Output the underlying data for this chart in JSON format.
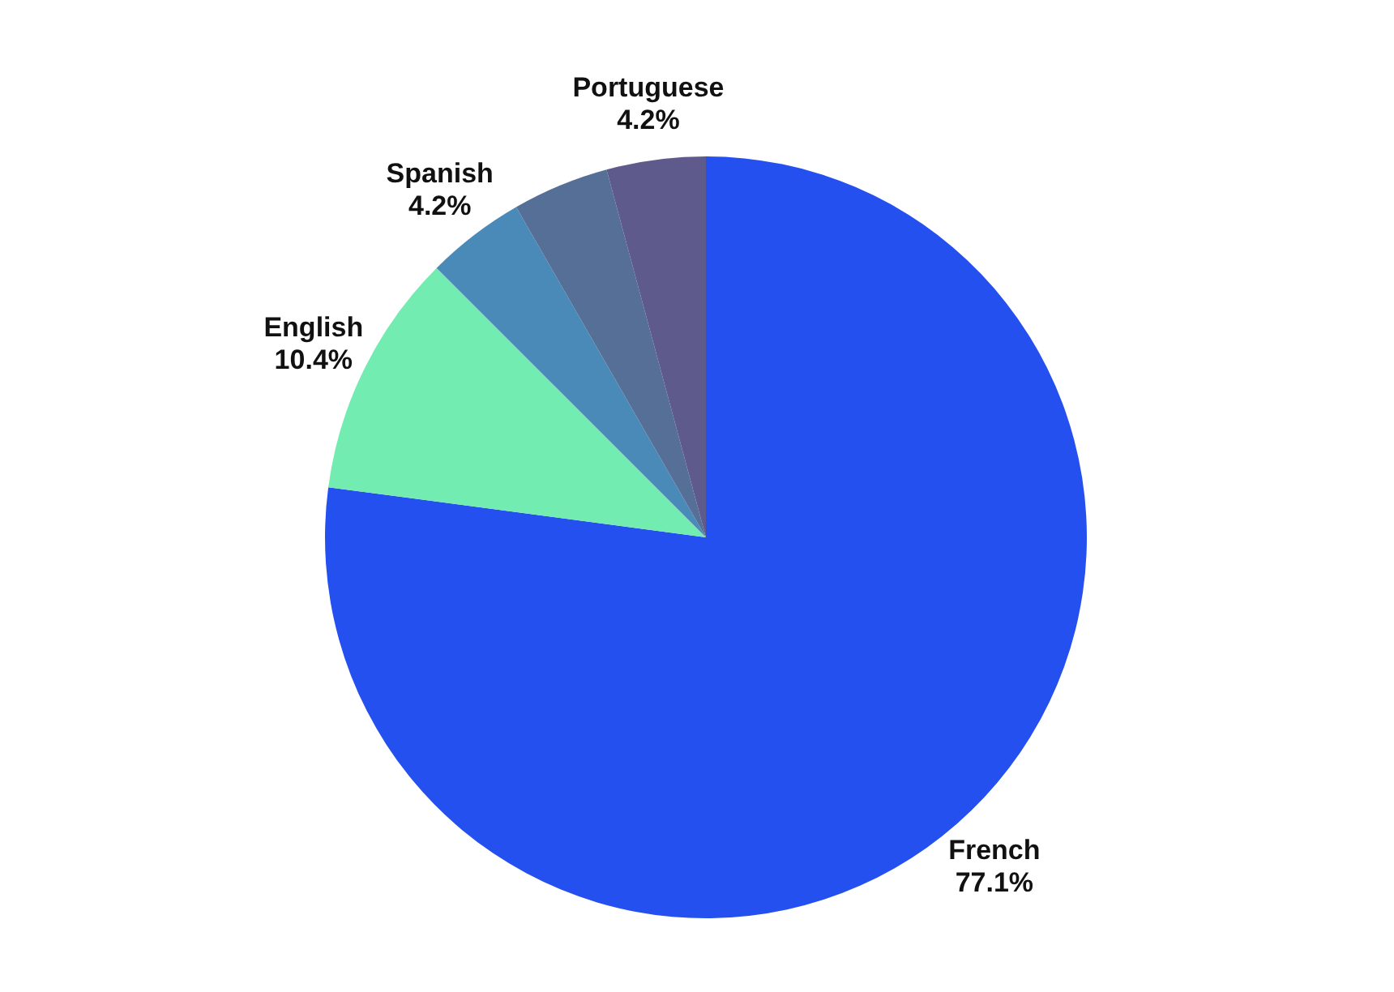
{
  "chart_data": {
    "type": "pie",
    "categories": [
      "French",
      "English",
      "Spanish",
      null,
      "Portuguese"
    ],
    "values": [
      77.1,
      10.4,
      4.2,
      4.1,
      4.2
    ],
    "value_labels": [
      "77.1%",
      "10.4%",
      "4.2%",
      null,
      "4.2%"
    ],
    "colors": [
      "#2550f0",
      "#72ecb0",
      "#4a8ab8",
      "#566f96",
      "#5f5a8c"
    ]
  }
}
